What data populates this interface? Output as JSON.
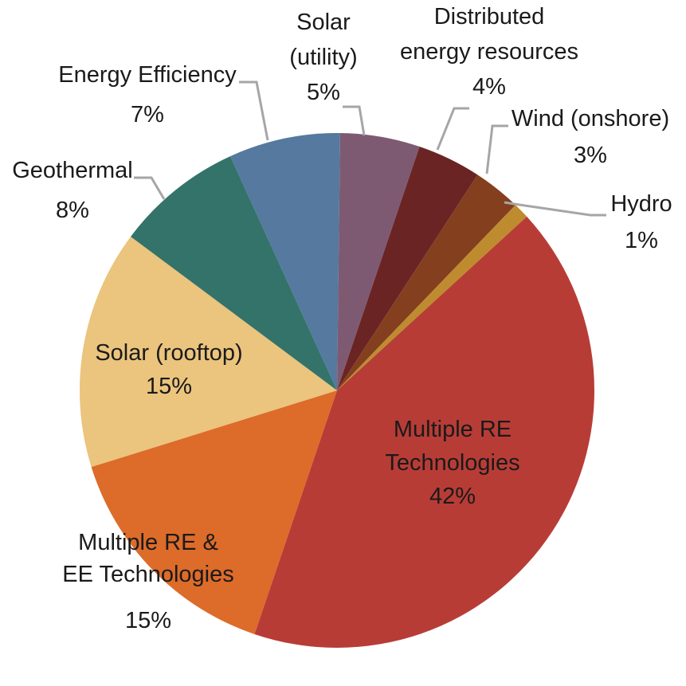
{
  "chart_data": {
    "type": "pie",
    "title": "",
    "slices": [
      {
        "label": [
          "Multiple RE",
          "Technologies"
        ],
        "percent_label": "42%",
        "value": 42,
        "color": "#b83c36"
      },
      {
        "label": [
          "Multiple RE &",
          "EE Technologies"
        ],
        "percent_label": "15%",
        "value": 15,
        "color": "#dd6b2a"
      },
      {
        "label": [
          "Solar (rooftop)"
        ],
        "percent_label": "15%",
        "value": 15,
        "color": "#ebc47d"
      },
      {
        "label": [
          "Geothermal"
        ],
        "percent_label": "8%",
        "value": 8,
        "color": "#33736a"
      },
      {
        "label": [
          "Energy Efficiency"
        ],
        "percent_label": "7%",
        "value": 7,
        "color": "#55799f"
      },
      {
        "label": [
          "Solar",
          "(utility)"
        ],
        "percent_label": "5%",
        "value": 5,
        "color": "#7e5a72"
      },
      {
        "label": [
          "Distributed",
          "energy resources"
        ],
        "percent_label": "4%",
        "value": 4,
        "color": "#6b2424"
      },
      {
        "label": [
          "Wind (onshore)"
        ],
        "percent_label": "3%",
        "value": 3,
        "color": "#843f1e"
      },
      {
        "label": [
          "Hydro"
        ],
        "percent_label": "1%",
        "value": 1,
        "color": "#be8b2f"
      }
    ]
  }
}
